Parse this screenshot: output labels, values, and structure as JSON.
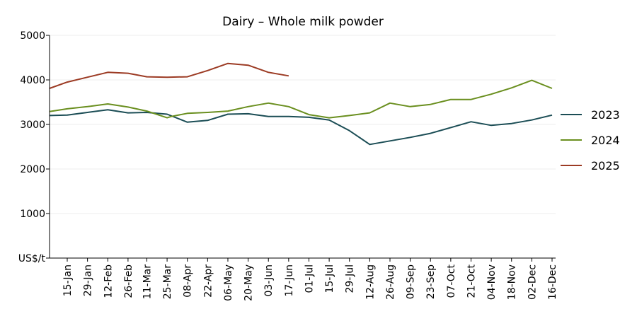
{
  "chart_data": {
    "type": "line",
    "title": "Dairy – Whole milk powder",
    "ylabel": "US$/t",
    "xlabel": "",
    "ylim": [
      0,
      5000
    ],
    "yticks": [
      0,
      1000,
      2000,
      3000,
      4000,
      5000
    ],
    "y_tick_labels": [
      "US$/t",
      "1000",
      "2000",
      "3000",
      "4000",
      "5000"
    ],
    "grid": "horizontal",
    "legend_position": "right",
    "x_tick_labels": [
      "15-Jan",
      "29-Jan",
      "12-Feb",
      "26-Feb",
      "11-Mar",
      "25-Mar",
      "08-Apr",
      "22-Apr",
      "06-May",
      "20-May",
      "03-Jun",
      "17-Jun",
      "01-Jul",
      "15-Jul",
      "29-Jul",
      "12-Aug",
      "26-Aug",
      "09-Sep",
      "23-Sep",
      "07-Oct",
      "21-Oct",
      "04-Nov",
      "18-Nov",
      "02-Dec",
      "16-Dec"
    ],
    "series": [
      {
        "name": "2023",
        "color": "#1b4d55",
        "x": [
          "02-Jan",
          "15-Jan",
          "29-Jan",
          "12-Feb",
          "26-Feb",
          "11-Mar",
          "25-Mar",
          "08-Apr",
          "22-Apr",
          "06-May",
          "20-May",
          "03-Jun",
          "17-Jun",
          "01-Jul",
          "15-Jul",
          "29-Jul",
          "12-Aug",
          "26-Aug",
          "09-Sep",
          "23-Sep",
          "07-Oct",
          "21-Oct",
          "04-Nov",
          "18-Nov",
          "02-Dec",
          "16-Dec"
        ],
        "values": [
          3200,
          3210,
          3270,
          3330,
          3260,
          3270,
          3230,
          3050,
          3090,
          3230,
          3240,
          3180,
          3180,
          3160,
          3100,
          2860,
          2550,
          2630,
          2710,
          2800,
          2930,
          3060,
          2980,
          3020,
          3100,
          3210
        ]
      },
      {
        "name": "2024",
        "color": "#6a8f1f",
        "x": [
          "02-Jan",
          "15-Jan",
          "29-Jan",
          "12-Feb",
          "26-Feb",
          "11-Mar",
          "25-Mar",
          "28-Mar",
          "08-Apr",
          "22-Apr",
          "06-May",
          "20-May",
          "03-Jun",
          "17-Jun",
          "01-Jul",
          "15-Jul",
          "29-Jul",
          "12-Aug",
          "26-Aug",
          "09-Sep",
          "23-Sep",
          "07-Oct",
          "21-Oct",
          "04-Nov",
          "18-Nov",
          "02-Dec",
          "16-Dec"
        ],
        "values": [
          3290,
          3350,
          3400,
          3460,
          3390,
          3300,
          3150,
          3180,
          3250,
          3270,
          3300,
          3400,
          3480,
          3400,
          3220,
          3150,
          3200,
          3260,
          3480,
          3400,
          3450,
          3560,
          3560,
          3680,
          3820,
          3990,
          3810
        ]
      },
      {
        "name": "2025",
        "color": "#9c3b24",
        "x": [
          "02-Jan",
          "15-Jan",
          "29-Jan",
          "12-Feb",
          "26-Feb",
          "11-Mar",
          "25-Mar",
          "08-Apr",
          "22-Apr",
          "06-May",
          "20-May",
          "03-Jun",
          "17-Jun"
        ],
        "values": [
          3810,
          3950,
          4060,
          4170,
          4150,
          4070,
          4060,
          4070,
          4210,
          4370,
          4330,
          4170,
          4090
        ]
      }
    ]
  }
}
